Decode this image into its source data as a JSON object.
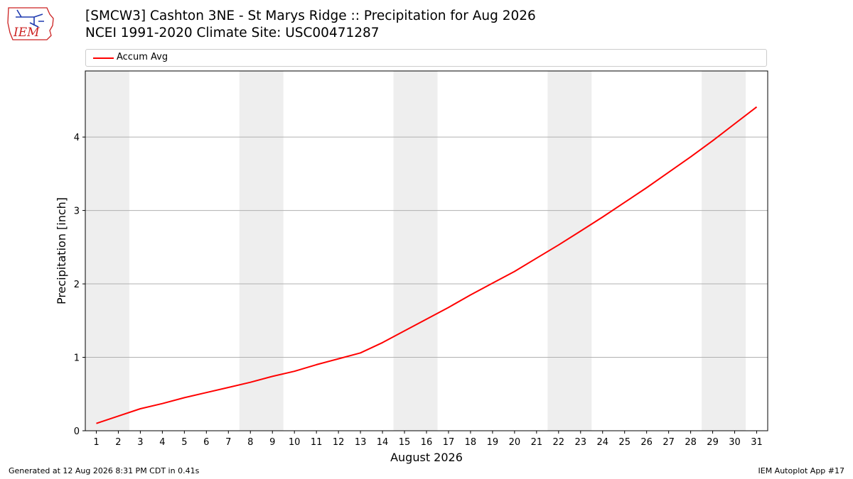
{
  "header": {
    "logo_text": "IEM",
    "title_line1": "[SMCW3] Cashton 3NE - St Marys Ridge :: Precipitation for Aug 2026",
    "title_line2": "NCEI 1991-2020 Climate Site: USC00471287"
  },
  "footer": {
    "generated": "Generated at 12 Aug 2026 8:31 PM CDT in 0.41s",
    "app": "IEM Autoplot App #17"
  },
  "colors": {
    "accum_line": "#ff0000",
    "weekend_shade": "#eeeeee",
    "grid": "#b0b0b0",
    "logo": "#cc2222"
  },
  "chart_data": {
    "type": "line",
    "xlabel": "August 2026",
    "ylabel": "Precipitation [inch]",
    "xlim": [
      0.5,
      31.5
    ],
    "ylim": [
      0,
      4.9
    ],
    "yticks": [
      0,
      1,
      2,
      3,
      4
    ],
    "categories": [
      "1",
      "2",
      "3",
      "4",
      "5",
      "6",
      "7",
      "8",
      "9",
      "10",
      "11",
      "12",
      "13",
      "14",
      "15",
      "16",
      "17",
      "18",
      "19",
      "20",
      "21",
      "22",
      "23",
      "24",
      "25",
      "26",
      "27",
      "28",
      "29",
      "30",
      "31"
    ],
    "grid": "horizontal",
    "legend_position": "top",
    "shaded_days": [
      [
        1,
        2
      ],
      [
        8,
        9
      ],
      [
        15,
        16
      ],
      [
        22,
        23
      ],
      [
        29,
        30
      ]
    ],
    "series": [
      {
        "name": "Accum Avg",
        "x": [
          1,
          2,
          3,
          4,
          5,
          6,
          7,
          8,
          9,
          10,
          11,
          12,
          13,
          14,
          15,
          16,
          17,
          18,
          19,
          20,
          21,
          22,
          23,
          24,
          25,
          26,
          27,
          28,
          29,
          30,
          31
        ],
        "values": [
          0.1,
          0.2,
          0.3,
          0.37,
          0.45,
          0.52,
          0.59,
          0.66,
          0.74,
          0.81,
          0.9,
          0.98,
          1.06,
          1.2,
          1.36,
          1.52,
          1.68,
          1.85,
          2.01,
          2.17,
          2.35,
          2.53,
          2.72,
          2.91,
          3.11,
          3.31,
          3.52,
          3.73,
          3.95,
          4.18,
          4.41
        ]
      }
    ]
  }
}
